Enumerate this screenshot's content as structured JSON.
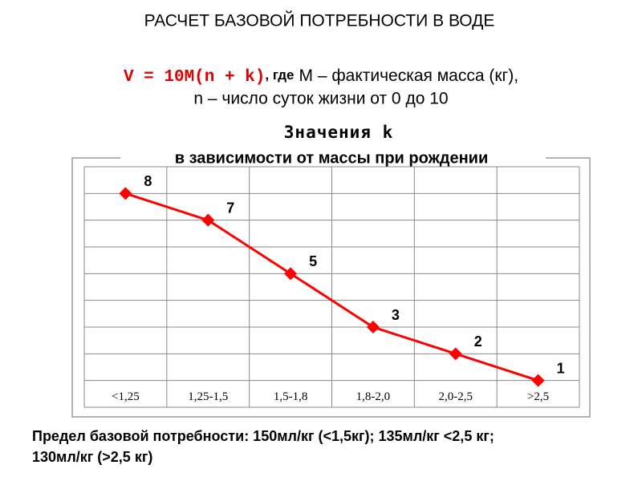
{
  "header": {
    "title": "РАСЧЕТ БАЗОВОЙ ПОТРЕБНОСТИ В ВОДЕ",
    "formula": "V = 10M(n + k)",
    "formula_joiner": ", где",
    "formula_note": "М – фактическая масса (кг),",
    "formula_line2": "n – число суток жизни от 0 до 10"
  },
  "chart_data": {
    "type": "line",
    "title": "Значения k",
    "subtitle": "в зависимости от массы при рождении",
    "categories": [
      "<1,25",
      "1,25-1,5",
      "1,5-1,8",
      "1,8-2,0",
      "2,0-2,5",
      ">2,5"
    ],
    "values": [
      8,
      7,
      5,
      3,
      2,
      1
    ],
    "color": "#ff0000",
    "ylim": [
      0,
      9
    ],
    "yticks": [
      0,
      1,
      2,
      3,
      4,
      5,
      6,
      7,
      8,
      9
    ],
    "grid": true
  },
  "footer": {
    "lines": [
      "Предел базовой потребности: 150мл/кг (<1,5кг);  135мл/кг <2,5 кг;",
      "130мл/кг (>2,5 кг)"
    ]
  }
}
